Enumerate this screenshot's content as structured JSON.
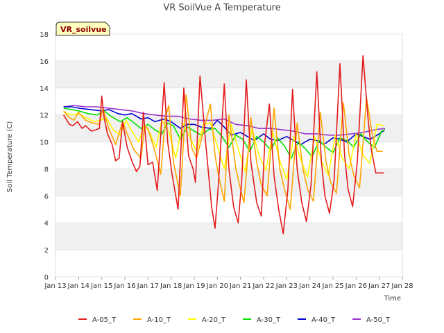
{
  "chart_data": {
    "type": "line",
    "title": "VR SoilVue A Temperature",
    "xlabel": "Time",
    "ylabel": "Soil Temperature (C)",
    "badge": "VR_soilvue",
    "xlim": [
      13,
      28
    ],
    "ylim": [
      0,
      18
    ],
    "x_ticks": [
      {
        "v": 13,
        "label": "Jan 13"
      },
      {
        "v": 14,
        "label": "Jan 14"
      },
      {
        "v": 15,
        "label": "Jan 15"
      },
      {
        "v": 16,
        "label": "Jan 16"
      },
      {
        "v": 17,
        "label": "Jan 17"
      },
      {
        "v": 18,
        "label": "Jan 18"
      },
      {
        "v": 19,
        "label": "Jan 19"
      },
      {
        "v": 20,
        "label": "Jan 20"
      },
      {
        "v": 21,
        "label": "Jan 21"
      },
      {
        "v": 22,
        "label": "Jan 22"
      },
      {
        "v": 23,
        "label": "Jan 23"
      },
      {
        "v": 24,
        "label": "Jan 24"
      },
      {
        "v": 25,
        "label": "Jan 25"
      },
      {
        "v": 26,
        "label": "Jan 26"
      },
      {
        "v": 27,
        "label": "Jan 27"
      },
      {
        "v": 28,
        "label": "Jan 28"
      }
    ],
    "y_ticks": [
      0,
      2,
      4,
      6,
      8,
      10,
      12,
      14,
      16,
      18
    ],
    "grid": "horizontal bands",
    "legend": "bottom",
    "series": [
      {
        "name": "A-05_T",
        "color": "#e31a1c",
        "x": [
          13.35,
          13.6,
          13.75,
          13.95,
          14.15,
          14.3,
          14.55,
          14.75,
          14.9,
          15.0,
          15.1,
          15.25,
          15.45,
          15.6,
          15.75,
          15.9,
          16.1,
          16.3,
          16.5,
          16.65,
          16.8,
          17.0,
          17.2,
          17.4,
          17.55,
          17.7,
          17.85,
          18.05,
          18.3,
          18.55,
          18.75,
          18.95,
          19.05,
          19.25,
          19.5,
          19.75,
          19.9,
          20.05,
          20.3,
          20.5,
          20.7,
          20.9,
          21.05,
          21.25,
          21.45,
          21.7,
          21.9,
          22.05,
          22.25,
          22.45,
          22.65,
          22.85,
          23.05,
          23.25,
          23.45,
          23.65,
          23.85,
          24.05,
          24.3,
          24.5,
          24.65,
          24.85,
          25.05,
          25.3,
          25.5,
          25.65,
          25.85,
          26.05,
          26.3,
          26.5,
          26.65,
          26.85,
          27.05,
          27.2
        ],
        "y": [
          12,
          11.3,
          11.2,
          11.5,
          11.0,
          11.2,
          10.8,
          10.9,
          11.0,
          13.4,
          11.8,
          10.6,
          9.8,
          8.6,
          8.8,
          11.5,
          9.6,
          8.6,
          7.8,
          8.2,
          12.2,
          8.3,
          8.5,
          6.4,
          10.5,
          14.4,
          10.0,
          7.5,
          5.0,
          14.0,
          9.0,
          8.0,
          7.0,
          14.9,
          9.8,
          5.2,
          3.6,
          7.0,
          14.3,
          8.0,
          5.2,
          4.0,
          7.0,
          14.6,
          8.5,
          5.5,
          4.5,
          10.0,
          12.8,
          7.5,
          5.0,
          3.2,
          6.5,
          13.9,
          8.0,
          5.5,
          4.1,
          6.8,
          15.2,
          8.5,
          6.0,
          4.7,
          7.2,
          15.8,
          9.0,
          6.5,
          5.2,
          8.5,
          16.4,
          12.0,
          9.5,
          7.7,
          7.7,
          7.7
        ]
      },
      {
        "name": "A-10_T",
        "color": "#ffa500",
        "x": [
          13.35,
          13.6,
          13.8,
          14.0,
          14.3,
          14.6,
          14.9,
          15.05,
          15.3,
          15.6,
          15.9,
          16.1,
          16.4,
          16.7,
          16.85,
          17.0,
          17.3,
          17.55,
          17.75,
          17.9,
          18.1,
          18.4,
          18.65,
          18.9,
          19.1,
          19.4,
          19.7,
          19.9,
          20.05,
          20.3,
          20.5,
          20.8,
          21.0,
          21.15,
          21.45,
          21.7,
          21.9,
          22.15,
          22.45,
          22.7,
          22.9,
          23.15,
          23.45,
          23.7,
          23.9,
          24.15,
          24.45,
          24.7,
          24.9,
          25.15,
          25.45,
          25.7,
          25.9,
          26.15,
          26.45,
          26.7,
          26.9,
          27.15
        ],
        "y": [
          12.3,
          11.8,
          11.6,
          12.2,
          11.6,
          11.4,
          11.3,
          12.5,
          11.0,
          9.8,
          11.5,
          10.6,
          9.4,
          8.8,
          11.2,
          11.0,
          9.3,
          7.6,
          11.8,
          12.7,
          8.5,
          6.0,
          13.5,
          9.5,
          8.8,
          10.8,
          12.8,
          9.0,
          7.5,
          5.6,
          12.0,
          8.0,
          6.5,
          5.5,
          11.8,
          8.5,
          6.8,
          6.0,
          12.5,
          8.0,
          6.5,
          5.0,
          11.4,
          8.0,
          6.5,
          5.6,
          12.2,
          8.5,
          7.0,
          6.2,
          12.9,
          9.0,
          7.5,
          6.6,
          13.3,
          10.5,
          9.3,
          9.3
        ]
      },
      {
        "name": "A-20_T",
        "color": "#ffff00",
        "x": [
          13.35,
          13.7,
          14.0,
          14.3,
          14.7,
          14.95,
          15.2,
          15.5,
          15.8,
          16.05,
          16.3,
          16.6,
          16.85,
          17.1,
          17.35,
          17.6,
          17.9,
          18.2,
          18.5,
          18.8,
          19.1,
          19.4,
          19.7,
          20.0,
          20.3,
          20.6,
          20.9,
          21.2,
          21.5,
          21.8,
          22.1,
          22.4,
          22.7,
          23.0,
          23.3,
          23.6,
          23.9,
          24.2,
          24.5,
          24.8,
          25.1,
          25.4,
          25.7,
          26.0,
          26.3,
          26.6,
          26.9,
          27.2
        ],
        "y": [
          12.2,
          12.0,
          12.1,
          11.8,
          11.5,
          11.6,
          11.8,
          10.9,
          10.5,
          11.6,
          10.8,
          10.0,
          11.3,
          10.6,
          9.6,
          11.6,
          10.8,
          8.8,
          11.4,
          10.4,
          9.3,
          11.3,
          11.4,
          9.7,
          8.0,
          11.3,
          9.5,
          7.8,
          11.0,
          9.0,
          7.9,
          10.7,
          8.6,
          7.2,
          10.4,
          8.7,
          7.4,
          10.4,
          8.6,
          7.5,
          10.5,
          8.8,
          8.0,
          10.6,
          9.0,
          8.4,
          11.3,
          11.2
        ]
      },
      {
        "name": "A-30_T",
        "color": "#00e000",
        "x": [
          13.35,
          13.7,
          14.0,
          14.4,
          14.8,
          15.1,
          15.4,
          15.8,
          16.1,
          16.4,
          16.7,
          17.0,
          17.3,
          17.6,
          17.85,
          18.1,
          18.4,
          18.7,
          19.0,
          19.3,
          19.6,
          19.9,
          20.2,
          20.5,
          20.8,
          21.1,
          21.4,
          21.7,
          22.0,
          22.3,
          22.6,
          22.9,
          23.2,
          23.5,
          23.8,
          24.1,
          24.4,
          24.7,
          25.0,
          25.3,
          25.6,
          25.9,
          26.2,
          26.5,
          26.8,
          27.1,
          27.25
        ],
        "y": [
          12.5,
          12.4,
          12.3,
          12.1,
          12.0,
          12.3,
          11.9,
          11.5,
          11.8,
          11.4,
          11.0,
          11.3,
          10.9,
          10.6,
          11.4,
          11.2,
          10.2,
          11.1,
          10.8,
          10.5,
          10.9,
          11.0,
          10.4,
          9.6,
          10.5,
          10.2,
          9.3,
          10.4,
          10.0,
          9.4,
          10.3,
          9.7,
          8.8,
          10.0,
          9.5,
          8.9,
          10.1,
          9.6,
          9.2,
          10.3,
          10.1,
          9.6,
          10.6,
          10.0,
          9.6,
          10.8,
          10.9
        ]
      },
      {
        "name": "A-40_T",
        "color": "#0000cd",
        "x": [
          13.35,
          13.7,
          14.0,
          14.5,
          15.0,
          15.3,
          15.7,
          16.0,
          16.3,
          16.7,
          17.0,
          17.3,
          17.7,
          18.0,
          18.4,
          18.7,
          19.0,
          19.3,
          19.7,
          20.0,
          20.3,
          20.6,
          21.0,
          21.3,
          21.6,
          22.0,
          22.3,
          22.6,
          23.0,
          23.3,
          23.6,
          24.0,
          24.3,
          24.6,
          25.0,
          25.3,
          25.6,
          26.0,
          26.3,
          26.6,
          27.0,
          27.25
        ],
        "y": [
          12.6,
          12.6,
          12.5,
          12.4,
          12.3,
          12.4,
          12.1,
          12.0,
          12.1,
          11.7,
          11.8,
          11.5,
          11.7,
          11.5,
          11.0,
          11.3,
          11.3,
          11.1,
          11.0,
          11.6,
          11.1,
          10.5,
          10.7,
          10.4,
          10.1,
          10.6,
          10.2,
          10.1,
          10.4,
          10.1,
          9.8,
          10.2,
          10.1,
          9.8,
          10.3,
          10.2,
          10.0,
          10.6,
          10.4,
          10.2,
          10.6,
          10.9
        ]
      },
      {
        "name": "A-50_T",
        "color": "#9932cc",
        "x": [
          13.35,
          13.8,
          14.3,
          14.8,
          15.3,
          15.8,
          16.3,
          16.8,
          17.3,
          17.8,
          18.3,
          18.8,
          19.3,
          19.8,
          20.3,
          20.8,
          21.3,
          21.8,
          22.3,
          22.8,
          23.3,
          23.8,
          24.3,
          24.8,
          25.3,
          25.8,
          26.3,
          26.8,
          27.25
        ],
        "y": [
          12.6,
          12.7,
          12.6,
          12.6,
          12.5,
          12.4,
          12.3,
          12.1,
          12.0,
          11.9,
          11.9,
          11.7,
          11.6,
          11.6,
          11.7,
          11.3,
          11.2,
          11.0,
          11.0,
          10.9,
          10.8,
          10.6,
          10.6,
          10.5,
          10.5,
          10.6,
          10.7,
          10.9,
          11.0
        ]
      }
    ]
  }
}
